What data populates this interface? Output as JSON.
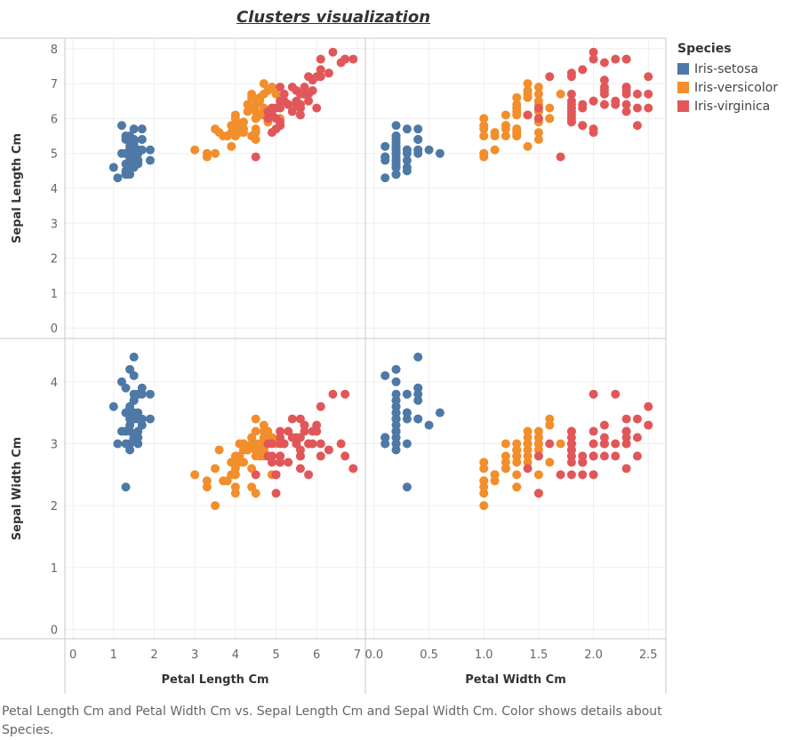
{
  "title": "Clusters visualization",
  "caption": "Petal Length Cm and Petal Width Cm vs. Sepal Length Cm and Sepal Width Cm.  Color shows details about Species.",
  "legend": {
    "title": "Species",
    "items": [
      {
        "label": "Iris-setosa",
        "color": "#4e79a7"
      },
      {
        "label": "Iris-versicolor",
        "color": "#f28e2b"
      },
      {
        "label": "Iris-virginica",
        "color": "#e15759"
      }
    ]
  },
  "chart_data": {
    "type": "scatter",
    "grid": true,
    "columns": [
      {
        "field": "PetalLengthCm",
        "label": "Petal Length Cm",
        "range": [
          -0.2,
          7.2
        ],
        "ticks": [
          0,
          1,
          2,
          3,
          4,
          5,
          6,
          7
        ]
      },
      {
        "field": "PetalWidthCm",
        "label": "Petal Width Cm",
        "range": [
          -0.08,
          2.66
        ],
        "ticks": [
          0.0,
          0.5,
          1.0,
          1.5,
          2.0,
          2.5
        ],
        "tick_labels": [
          "0.0",
          "0.5",
          "1.0",
          "1.5",
          "2.0",
          "2.5"
        ]
      }
    ],
    "rows": [
      {
        "field": "SepalLengthCm",
        "label": "Sepal Length Cm",
        "range": [
          -0.3,
          8.3
        ],
        "ticks": [
          0,
          1,
          2,
          3,
          4,
          5,
          6,
          7,
          8
        ]
      },
      {
        "field": "SepalWidthCm",
        "label": "Sepal Width Cm",
        "range": [
          -0.15,
          4.7
        ],
        "ticks": [
          0,
          1,
          2,
          3,
          4
        ]
      }
    ],
    "fields": [
      "SepalLengthCm",
      "SepalWidthCm",
      "PetalLengthCm",
      "PetalWidthCm"
    ],
    "series": [
      {
        "name": "Iris-setosa",
        "points": [
          [
            5.1,
            3.5,
            1.4,
            0.2
          ],
          [
            4.9,
            3.0,
            1.4,
            0.2
          ],
          [
            4.7,
            3.2,
            1.3,
            0.2
          ],
          [
            4.6,
            3.1,
            1.5,
            0.2
          ],
          [
            5.0,
            3.6,
            1.4,
            0.2
          ],
          [
            5.4,
            3.9,
            1.7,
            0.4
          ],
          [
            4.6,
            3.4,
            1.4,
            0.3
          ],
          [
            5.0,
            3.4,
            1.5,
            0.2
          ],
          [
            4.4,
            2.9,
            1.4,
            0.2
          ],
          [
            4.9,
            3.1,
            1.5,
            0.1
          ],
          [
            5.4,
            3.7,
            1.5,
            0.2
          ],
          [
            4.8,
            3.4,
            1.6,
            0.2
          ],
          [
            4.8,
            3.0,
            1.4,
            0.1
          ],
          [
            4.3,
            3.0,
            1.1,
            0.1
          ],
          [
            5.8,
            4.0,
            1.2,
            0.2
          ],
          [
            5.7,
            4.4,
            1.5,
            0.4
          ],
          [
            5.4,
            3.9,
            1.3,
            0.4
          ],
          [
            5.1,
            3.5,
            1.4,
            0.3
          ],
          [
            5.7,
            3.8,
            1.7,
            0.3
          ],
          [
            5.1,
            3.8,
            1.5,
            0.3
          ],
          [
            5.4,
            3.4,
            1.7,
            0.2
          ],
          [
            5.1,
            3.7,
            1.5,
            0.4
          ],
          [
            4.6,
            3.6,
            1.0,
            0.2
          ],
          [
            5.1,
            3.3,
            1.7,
            0.5
          ],
          [
            4.8,
            3.4,
            1.9,
            0.2
          ],
          [
            5.0,
            3.0,
            1.6,
            0.2
          ],
          [
            5.0,
            3.4,
            1.6,
            0.4
          ],
          [
            5.2,
            3.5,
            1.5,
            0.2
          ],
          [
            5.2,
            3.4,
            1.4,
            0.2
          ],
          [
            4.7,
            3.2,
            1.6,
            0.2
          ],
          [
            4.8,
            3.1,
            1.6,
            0.2
          ],
          [
            5.4,
            3.4,
            1.5,
            0.4
          ],
          [
            5.2,
            4.1,
            1.5,
            0.1
          ],
          [
            5.5,
            4.2,
            1.4,
            0.2
          ],
          [
            4.9,
            3.1,
            1.5,
            0.1
          ],
          [
            5.0,
            3.2,
            1.2,
            0.2
          ],
          [
            5.5,
            3.5,
            1.3,
            0.2
          ],
          [
            4.9,
            3.1,
            1.5,
            0.1
          ],
          [
            4.4,
            3.0,
            1.3,
            0.2
          ],
          [
            5.1,
            3.4,
            1.5,
            0.2
          ],
          [
            5.0,
            3.5,
            1.3,
            0.3
          ],
          [
            4.5,
            2.3,
            1.3,
            0.3
          ],
          [
            4.4,
            3.2,
            1.3,
            0.2
          ],
          [
            5.0,
            3.5,
            1.6,
            0.6
          ],
          [
            5.1,
            3.8,
            1.9,
            0.4
          ],
          [
            4.8,
            3.0,
            1.4,
            0.3
          ],
          [
            5.1,
            3.8,
            1.6,
            0.2
          ],
          [
            4.6,
            3.2,
            1.4,
            0.2
          ],
          [
            5.3,
            3.7,
            1.5,
            0.2
          ],
          [
            5.0,
            3.3,
            1.4,
            0.2
          ]
        ]
      },
      {
        "name": "Iris-versicolor",
        "points": [
          [
            7.0,
            3.2,
            4.7,
            1.4
          ],
          [
            6.4,
            3.2,
            4.5,
            1.5
          ],
          [
            6.9,
            3.1,
            4.9,
            1.5
          ],
          [
            5.5,
            2.3,
            4.0,
            1.3
          ],
          [
            6.5,
            2.8,
            4.6,
            1.5
          ],
          [
            5.7,
            2.8,
            4.5,
            1.3
          ],
          [
            6.3,
            3.3,
            4.7,
            1.6
          ],
          [
            4.9,
            2.4,
            3.3,
            1.0
          ],
          [
            6.6,
            2.9,
            4.6,
            1.3
          ],
          [
            5.2,
            2.7,
            3.9,
            1.4
          ],
          [
            5.0,
            2.0,
            3.5,
            1.0
          ],
          [
            5.9,
            3.0,
            4.2,
            1.5
          ],
          [
            6.0,
            2.2,
            4.0,
            1.0
          ],
          [
            6.1,
            2.9,
            4.7,
            1.4
          ],
          [
            5.6,
            2.9,
            3.6,
            1.3
          ],
          [
            6.7,
            3.1,
            4.4,
            1.4
          ],
          [
            5.6,
            3.0,
            4.5,
            1.5
          ],
          [
            5.8,
            2.7,
            4.1,
            1.0
          ],
          [
            6.2,
            2.2,
            4.5,
            1.5
          ],
          [
            5.6,
            2.5,
            3.9,
            1.1
          ],
          [
            5.9,
            3.2,
            4.8,
            1.8
          ],
          [
            6.1,
            2.8,
            4.0,
            1.3
          ],
          [
            6.3,
            2.5,
            4.9,
            1.5
          ],
          [
            6.1,
            2.8,
            4.7,
            1.2
          ],
          [
            6.4,
            2.9,
            4.3,
            1.3
          ],
          [
            6.6,
            3.0,
            4.4,
            1.4
          ],
          [
            6.8,
            2.8,
            4.8,
            1.4
          ],
          [
            6.7,
            3.0,
            5.0,
            1.7
          ],
          [
            6.0,
            2.9,
            4.5,
            1.5
          ],
          [
            5.7,
            2.6,
            3.5,
            1.0
          ],
          [
            5.5,
            2.4,
            3.8,
            1.1
          ],
          [
            5.5,
            2.4,
            3.7,
            1.0
          ],
          [
            5.8,
            2.7,
            3.9,
            1.2
          ],
          [
            6.0,
            2.7,
            5.1,
            1.6
          ],
          [
            5.4,
            3.0,
            4.5,
            1.5
          ],
          [
            6.0,
            3.4,
            4.5,
            1.6
          ],
          [
            6.7,
            3.1,
            4.7,
            1.5
          ],
          [
            6.3,
            2.3,
            4.4,
            1.3
          ],
          [
            5.6,
            3.0,
            4.1,
            1.3
          ],
          [
            5.5,
            2.5,
            4.0,
            1.3
          ],
          [
            5.5,
            2.6,
            4.4,
            1.2
          ],
          [
            6.1,
            3.0,
            4.6,
            1.4
          ],
          [
            5.8,
            2.6,
            4.0,
            1.2
          ],
          [
            5.0,
            2.3,
            3.3,
            1.0
          ],
          [
            5.6,
            2.7,
            4.2,
            1.3
          ],
          [
            5.7,
            3.0,
            4.2,
            1.2
          ],
          [
            5.7,
            2.9,
            4.2,
            1.3
          ],
          [
            6.2,
            2.9,
            4.3,
            1.3
          ],
          [
            5.1,
            2.5,
            3.0,
            1.1
          ],
          [
            5.7,
            2.8,
            4.1,
            1.3
          ]
        ]
      },
      {
        "name": "Iris-virginica",
        "points": [
          [
            6.3,
            3.3,
            6.0,
            2.5
          ],
          [
            5.8,
            2.7,
            5.1,
            1.9
          ],
          [
            7.1,
            3.0,
            5.9,
            2.1
          ],
          [
            6.3,
            2.9,
            5.6,
            1.8
          ],
          [
            6.5,
            3.0,
            5.8,
            2.2
          ],
          [
            7.6,
            3.0,
            6.6,
            2.1
          ],
          [
            4.9,
            2.5,
            4.5,
            1.7
          ],
          [
            7.3,
            2.9,
            6.3,
            1.8
          ],
          [
            6.7,
            2.5,
            5.8,
            1.8
          ],
          [
            7.2,
            3.6,
            6.1,
            2.5
          ],
          [
            6.5,
            3.2,
            5.1,
            2.0
          ],
          [
            6.4,
            2.7,
            5.3,
            1.9
          ],
          [
            6.8,
            3.0,
            5.5,
            2.1
          ],
          [
            5.7,
            2.5,
            5.0,
            2.0
          ],
          [
            5.8,
            2.8,
            5.1,
            2.4
          ],
          [
            6.4,
            3.2,
            5.3,
            2.3
          ],
          [
            6.5,
            3.0,
            5.5,
            1.8
          ],
          [
            7.7,
            3.8,
            6.7,
            2.2
          ],
          [
            7.7,
            2.6,
            6.9,
            2.3
          ],
          [
            6.0,
            2.2,
            5.0,
            1.5
          ],
          [
            6.9,
            3.2,
            5.7,
            2.3
          ],
          [
            5.6,
            2.8,
            4.9,
            2.0
          ],
          [
            7.7,
            2.8,
            6.7,
            2.0
          ],
          [
            6.3,
            2.7,
            4.9,
            1.8
          ],
          [
            6.7,
            3.3,
            5.7,
            2.1
          ],
          [
            7.2,
            3.2,
            6.0,
            1.8
          ],
          [
            6.2,
            2.8,
            4.8,
            1.8
          ],
          [
            6.1,
            3.0,
            4.9,
            1.8
          ],
          [
            6.4,
            2.8,
            5.6,
            2.1
          ],
          [
            7.2,
            3.0,
            5.8,
            1.6
          ],
          [
            7.4,
            2.8,
            6.1,
            1.9
          ],
          [
            7.9,
            3.8,
            6.4,
            2.0
          ],
          [
            6.4,
            2.8,
            5.6,
            2.2
          ],
          [
            6.3,
            2.8,
            5.1,
            1.5
          ],
          [
            6.1,
            2.6,
            5.6,
            1.4
          ],
          [
            7.7,
            3.0,
            6.1,
            2.3
          ],
          [
            6.3,
            3.4,
            5.6,
            2.4
          ],
          [
            6.4,
            3.1,
            5.5,
            1.8
          ],
          [
            6.0,
            3.0,
            4.8,
            1.8
          ],
          [
            6.9,
            3.1,
            5.4,
            2.1
          ],
          [
            6.7,
            3.1,
            5.6,
            2.4
          ],
          [
            6.9,
            3.1,
            5.1,
            2.3
          ],
          [
            5.8,
            2.7,
            5.1,
            1.9
          ],
          [
            6.8,
            3.2,
            5.9,
            2.3
          ],
          [
            6.7,
            3.3,
            5.7,
            2.5
          ],
          [
            6.7,
            3.0,
            5.2,
            2.3
          ],
          [
            6.3,
            2.5,
            5.0,
            1.9
          ],
          [
            6.5,
            3.0,
            5.2,
            2.0
          ],
          [
            6.2,
            3.4,
            5.4,
            2.3
          ],
          [
            5.9,
            3.0,
            5.1,
            1.8
          ]
        ]
      }
    ]
  }
}
